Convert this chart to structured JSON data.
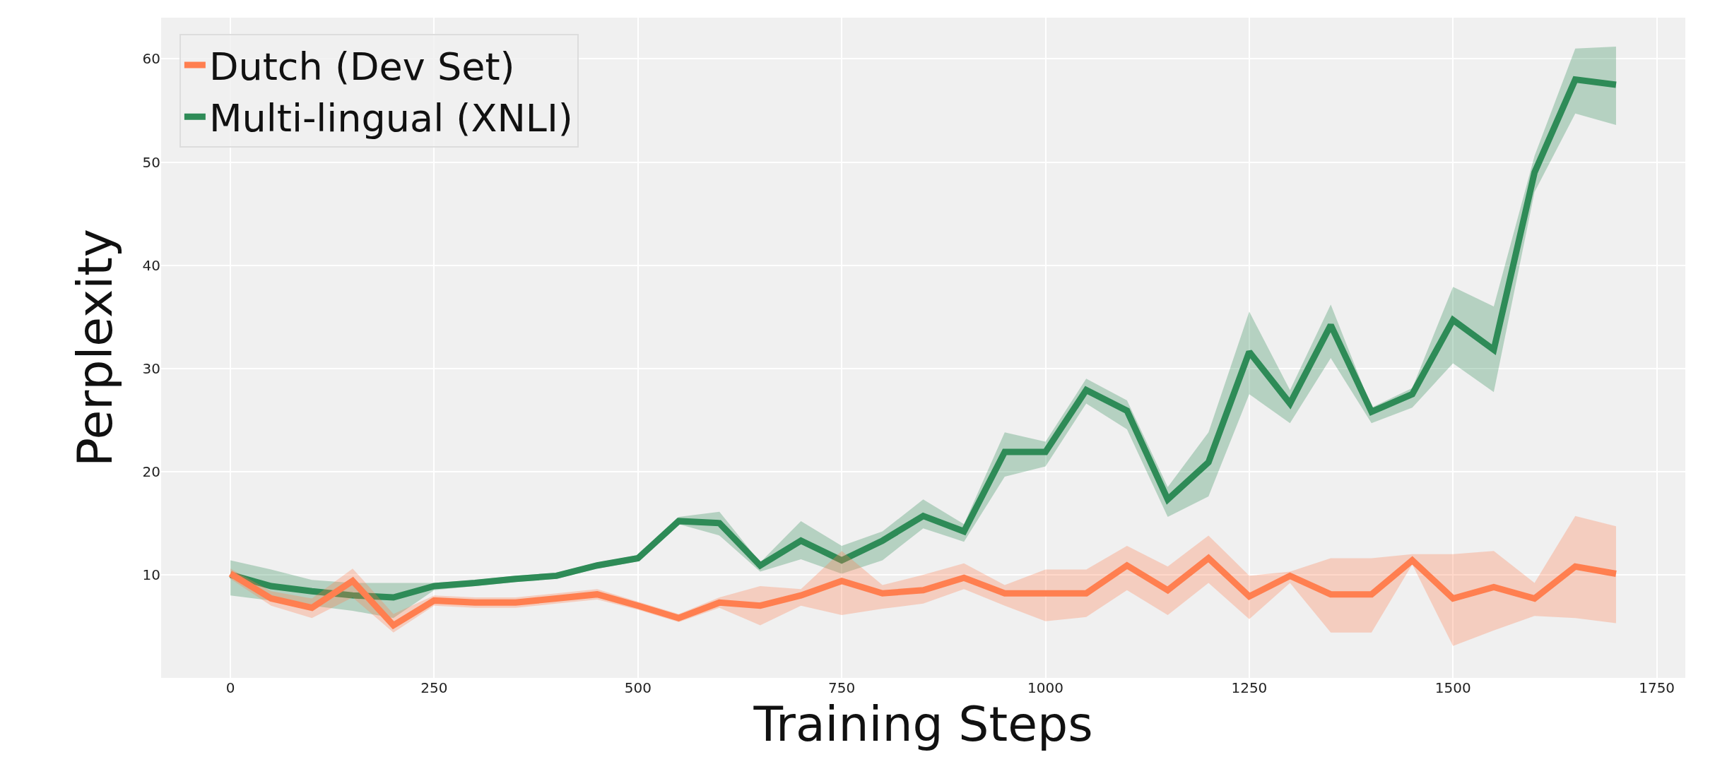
{
  "chart_data": {
    "type": "line",
    "xlabel": "Training Steps",
    "ylabel": "Perplexity",
    "x": [
      0,
      50,
      100,
      150,
      200,
      250,
      300,
      350,
      400,
      450,
      500,
      550,
      600,
      650,
      700,
      750,
      800,
      850,
      900,
      950,
      1000,
      1050,
      1100,
      1150,
      1200,
      1250,
      1300,
      1350,
      1400,
      1450,
      1500,
      1550,
      1600,
      1650,
      1700
    ],
    "series": [
      {
        "name": "Multi-lingual (XNLI)",
        "color": "#2e8b57",
        "values": [
          10.0,
          8.9,
          8.4,
          8.0,
          7.8,
          8.9,
          9.2,
          9.6,
          9.9,
          10.9,
          11.6,
          15.2,
          15.0,
          10.9,
          13.3,
          11.4,
          13.3,
          15.7,
          14.2,
          21.9,
          21.9,
          27.9,
          25.9,
          17.3,
          20.9,
          31.6,
          26.6,
          34.2,
          25.8,
          27.5,
          34.7,
          31.8,
          49.0,
          58.0,
          57.5
        ],
        "lower": [
          8.0,
          7.5,
          7.0,
          6.5,
          5.8,
          8.5,
          8.9,
          9.3,
          9.6,
          10.6,
          11.3,
          14.9,
          13.8,
          10.3,
          11.5,
          10.1,
          11.4,
          14.5,
          13.2,
          19.5,
          20.5,
          26.6,
          24.1,
          15.6,
          17.6,
          27.5,
          24.7,
          31.0,
          24.7,
          26.2,
          30.5,
          27.7,
          47.1,
          54.7,
          53.6
        ],
        "upper": [
          11.4,
          10.5,
          9.5,
          9.2,
          9.2,
          9.2,
          9.5,
          9.9,
          10.2,
          11.2,
          11.9,
          15.6,
          16.1,
          11.2,
          15.2,
          12.8,
          14.2,
          17.3,
          14.9,
          23.8,
          22.9,
          29.0,
          26.9,
          18.5,
          23.8,
          35.5,
          27.9,
          36.2,
          26.2,
          28.1,
          37.9,
          36.0,
          50.6,
          61.0,
          61.2
        ]
      },
      {
        "name": "Dutch (Dev Set)",
        "color": "#ff7f50",
        "values": [
          10.1,
          7.7,
          6.8,
          9.4,
          5.1,
          7.5,
          7.3,
          7.3,
          7.7,
          8.1,
          7.0,
          5.8,
          7.3,
          7.0,
          8.0,
          9.4,
          8.2,
          8.5,
          9.7,
          8.2,
          8.2,
          8.2,
          10.9,
          8.5,
          11.6,
          7.9,
          9.9,
          8.1,
          8.1,
          11.4,
          7.7,
          8.8,
          7.7,
          10.8,
          10.1
        ],
        "lower": [
          9.6,
          7.0,
          5.8,
          7.8,
          4.4,
          7.0,
          6.8,
          6.8,
          7.2,
          7.6,
          6.6,
          5.4,
          6.8,
          5.1,
          7.0,
          6.1,
          6.7,
          7.2,
          8.6,
          7.0,
          5.5,
          5.9,
          8.5,
          6.1,
          9.2,
          5.7,
          9.2,
          4.4,
          4.4,
          11.0,
          3.1,
          4.6,
          6.0,
          5.8,
          5.3
        ],
        "upper": [
          10.6,
          8.4,
          7.7,
          10.6,
          6.2,
          8.0,
          7.8,
          7.8,
          8.2,
          8.6,
          7.4,
          6.2,
          7.8,
          8.9,
          8.6,
          12.3,
          9.0,
          10.0,
          11.1,
          9.0,
          10.5,
          10.5,
          12.8,
          10.8,
          13.8,
          9.9,
          10.3,
          11.6,
          11.6,
          12.0,
          12.0,
          12.3,
          9.2,
          15.7,
          14.7
        ]
      }
    ],
    "xlim": [
      -85,
      1785
    ],
    "xticks": [
      0,
      250,
      500,
      750,
      1000,
      1250,
      1500,
      1750
    ],
    "ylim": [
      0,
      64
    ],
    "yticks": [
      10,
      20,
      30,
      40,
      50,
      60
    ],
    "grid": true,
    "legend": "top left",
    "line_style": "solid",
    "marker": "none"
  }
}
